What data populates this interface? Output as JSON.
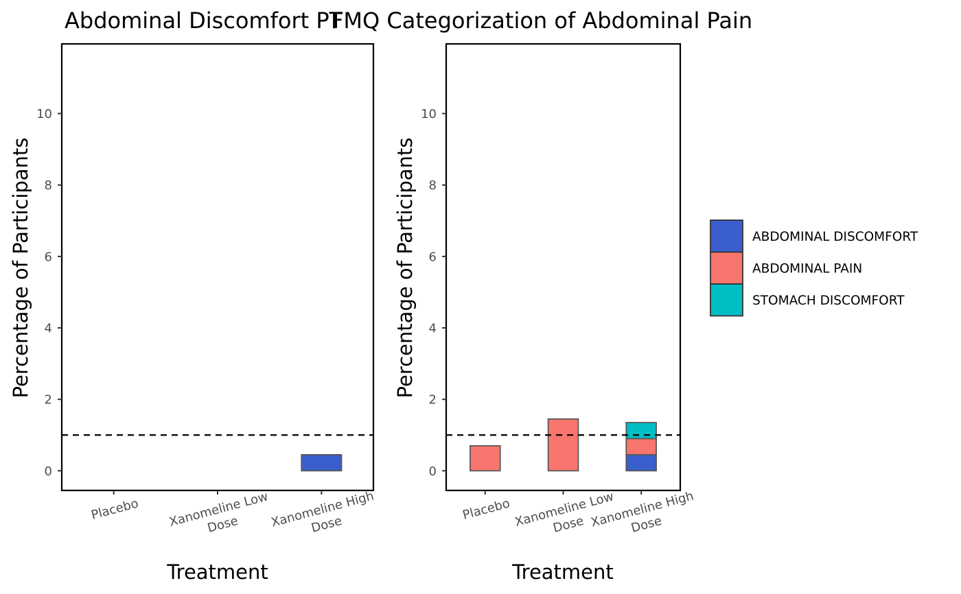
{
  "chart_data": [
    {
      "type": "bar",
      "stacked": true,
      "title": "Abdominal Discomfort PT",
      "xlabel": "Treatment",
      "ylabel": "Percentage of Participants",
      "categories": [
        "Placebo",
        "Xanomeline Low\nDose",
        "Xanomeline High\nDose"
      ],
      "ylim": [
        -0.55,
        11.95
      ],
      "yticks": [
        0,
        2,
        4,
        6,
        8,
        10
      ],
      "reference_line": 1,
      "series": [
        {
          "name": "ABDOMINAL DISCOMFORT",
          "values": [
            0,
            0,
            0.45
          ]
        }
      ],
      "grid": false
    },
    {
      "type": "bar",
      "stacked": true,
      "title": "FMQ Categorization of Abdominal Pain",
      "xlabel": "Treatment",
      "ylabel": "Percentage of Participants",
      "categories": [
        "Placebo",
        "Xanomeline Low\nDose",
        "Xanomeline High\nDose"
      ],
      "ylim": [
        -0.55,
        11.95
      ],
      "yticks": [
        0,
        2,
        4,
        6,
        8,
        10
      ],
      "reference_line": 1,
      "series": [
        {
          "name": "ABDOMINAL DISCOMFORT",
          "values": [
            0,
            0,
            0.45
          ]
        },
        {
          "name": "ABDOMINAL PAIN",
          "values": [
            0.7,
            1.45,
            0.45
          ]
        },
        {
          "name": "STOMACH DISCOMFORT",
          "values": [
            0,
            0,
            0.45
          ]
        }
      ],
      "grid": false
    }
  ],
  "legend": {
    "placement": "right",
    "items": [
      {
        "label": "ABDOMINAL DISCOMFORT",
        "color": "#3a5fcd"
      },
      {
        "label": "ABDOMINAL PAIN",
        "color": "#f8766d"
      },
      {
        "label": "STOMACH DISCOMFORT",
        "color": "#00bfc4"
      }
    ]
  },
  "colors": {
    "ABDOMINAL DISCOMFORT": "#3a5fcd",
    "ABDOMINAL PAIN": "#f8766d",
    "STOMACH DISCOMFORT": "#00bfc4",
    "bar_outline": "#595959",
    "reference_line": "#000000"
  }
}
